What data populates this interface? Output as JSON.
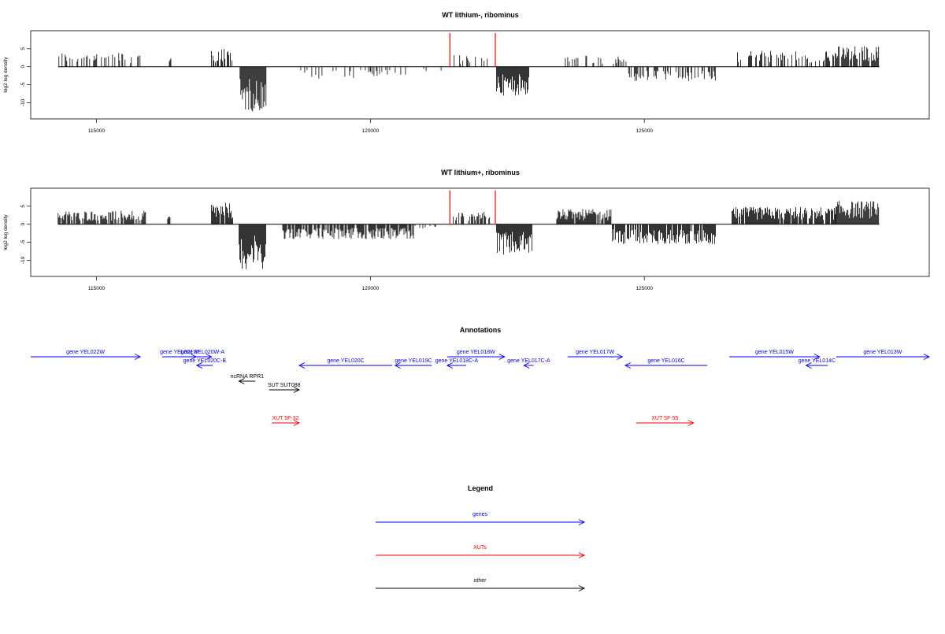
{
  "chart_data": [
    {
      "type": "bar",
      "title": "WT lithium-, ribominus",
      "ylabel": "log2 log density",
      "xlim": [
        113800,
        130200
      ],
      "ylim": [
        -14.5,
        10
      ],
      "x_ticks": [
        115000,
        120000,
        125000
      ],
      "y_ticks": [
        5,
        0,
        -5,
        -10
      ],
      "marker_lines": [
        121450,
        122280
      ],
      "bar_range": [
        114300,
        129290
      ],
      "signal_segments": [
        {
          "from": 114300,
          "to": 115830,
          "sign": 1,
          "amp": 4.0,
          "density": 0.35
        },
        {
          "from": 116330,
          "to": 116360,
          "sign": 1,
          "amp": 3.0,
          "density": 1.0
        },
        {
          "from": 117100,
          "to": 117480,
          "sign": 1,
          "amp": 5.0,
          "density": 0.55
        },
        {
          "from": 117620,
          "to": 118100,
          "sign": -1,
          "amp": 12.5,
          "density": 1.0
        },
        {
          "from": 118700,
          "to": 120700,
          "sign": -1,
          "amp": 3.3,
          "density": 0.22
        },
        {
          "from": 120700,
          "to": 121300,
          "sign": -1,
          "amp": 1.5,
          "density": 0.12
        },
        {
          "from": 121500,
          "to": 122200,
          "sign": 1,
          "amp": 3.3,
          "density": 0.22
        },
        {
          "from": 122300,
          "to": 122900,
          "sign": -1,
          "amp": 8.0,
          "density": 1.0
        },
        {
          "from": 123500,
          "to": 124700,
          "sign": 1,
          "amp": 3.2,
          "density": 0.28
        },
        {
          "from": 124700,
          "to": 126300,
          "sign": -1,
          "amp": 4.2,
          "density": 0.35
        },
        {
          "from": 126700,
          "to": 128500,
          "sign": 1,
          "amp": 4.5,
          "density": 0.45
        },
        {
          "from": 128500,
          "to": 129290,
          "sign": 1,
          "amp": 5.8,
          "density": 0.85
        }
      ]
    },
    {
      "type": "bar",
      "title": "WT lithium+, ribominus",
      "ylabel": "log2 log density",
      "xlim": [
        113800,
        130200
      ],
      "ylim": [
        -14.5,
        10
      ],
      "x_ticks": [
        115000,
        120000,
        125000
      ],
      "y_ticks": [
        5,
        0,
        -5,
        -10
      ],
      "marker_lines": [
        121450,
        122280
      ],
      "bar_range": [
        114300,
        129290
      ],
      "signal_segments": [
        {
          "from": 114300,
          "to": 115900,
          "sign": 1,
          "amp": 3.8,
          "density": 0.8
        },
        {
          "from": 116300,
          "to": 116350,
          "sign": 1,
          "amp": 2.5,
          "density": 1.0
        },
        {
          "from": 117100,
          "to": 117500,
          "sign": 1,
          "amp": 6.0,
          "density": 0.9
        },
        {
          "from": 117600,
          "to": 118100,
          "sign": -1,
          "amp": 12.5,
          "density": 1.0
        },
        {
          "from": 118400,
          "to": 120800,
          "sign": -1,
          "amp": 4.2,
          "density": 0.8
        },
        {
          "from": 120800,
          "to": 121300,
          "sign": -1,
          "amp": 1.5,
          "density": 0.3
        },
        {
          "from": 121500,
          "to": 122200,
          "sign": 1,
          "amp": 3.5,
          "density": 0.5
        },
        {
          "from": 122300,
          "to": 122950,
          "sign": -1,
          "amp": 8.5,
          "density": 1.0
        },
        {
          "from": 123400,
          "to": 124400,
          "sign": 1,
          "amp": 4.2,
          "density": 0.9
        },
        {
          "from": 124400,
          "to": 126300,
          "sign": -1,
          "amp": 5.5,
          "density": 0.85
        },
        {
          "from": 126600,
          "to": 128500,
          "sign": 1,
          "amp": 4.8,
          "density": 0.9
        },
        {
          "from": 128500,
          "to": 129290,
          "sign": 1,
          "amp": 6.5,
          "density": 1.0
        }
      ]
    }
  ],
  "annotations": {
    "title": "Annotations",
    "colors": {
      "genes": "#0000ff",
      "xuts": "#ff0000",
      "other": "#000000"
    },
    "features": [
      {
        "label": "gene YEL022W",
        "kind": "genes",
        "start": 113800,
        "end": 115800,
        "strand": "+",
        "row": 0
      },
      {
        "label": "gene YEL021W",
        "kind": "genes",
        "start": 116200,
        "end": 116820,
        "strand": "+",
        "row": 0
      },
      {
        "label": "gene YEL020W-A",
        "kind": "genes",
        "start": 116770,
        "end": 117100,
        "strand": "+",
        "row": 0
      },
      {
        "label": "gene YEL020C-B",
        "kind": "genes",
        "start": 116830,
        "end": 117120,
        "strand": "-",
        "row": 1
      },
      {
        "label": "gene YEL020C",
        "kind": "genes",
        "start": 118700,
        "end": 120400,
        "strand": "-",
        "row": 1
      },
      {
        "label": "gene YEL019C",
        "kind": "genes",
        "start": 120450,
        "end": 121120,
        "strand": "-",
        "row": 1
      },
      {
        "label": "gene YEL018C-A",
        "kind": "genes",
        "start": 121400,
        "end": 121750,
        "strand": "-",
        "row": 1
      },
      {
        "label": "gene YEL018W",
        "kind": "genes",
        "start": 121400,
        "end": 122450,
        "strand": "+",
        "row": 0
      },
      {
        "label": "gene YEL017C-A",
        "kind": "genes",
        "start": 122800,
        "end": 122980,
        "strand": "-",
        "row": 1
      },
      {
        "label": "gene YEL017W",
        "kind": "genes",
        "start": 123600,
        "end": 124600,
        "strand": "+",
        "row": 0
      },
      {
        "label": "gene YEL016C",
        "kind": "genes",
        "start": 124650,
        "end": 126150,
        "strand": "-",
        "row": 1
      },
      {
        "label": "gene YEL015W",
        "kind": "genes",
        "start": 126550,
        "end": 128200,
        "strand": "+",
        "row": 0
      },
      {
        "label": "gene YEL014C",
        "kind": "genes",
        "start": 127950,
        "end": 128350,
        "strand": "-",
        "row": 1
      },
      {
        "label": "gene YEL013W",
        "kind": "genes",
        "start": 128500,
        "end": 130200,
        "strand": "+",
        "row": 0
      },
      {
        "label": "ncRNA RPR1",
        "kind": "other",
        "start": 117600,
        "end": 117900,
        "strand": "-",
        "row": 2
      },
      {
        "label": "SUT SUT088",
        "kind": "other",
        "start": 118150,
        "end": 118700,
        "strand": "+",
        "row": 3
      },
      {
        "label": "XUT 5F-32",
        "kind": "xuts",
        "start": 118200,
        "end": 118700,
        "strand": "+",
        "row": 4
      },
      {
        "label": "XUT 5F-55",
        "kind": "xuts",
        "start": 124850,
        "end": 125900,
        "strand": "+",
        "row": 4
      }
    ]
  },
  "legend": {
    "title": "Legend",
    "items": [
      {
        "label": "genes",
        "kind": "genes"
      },
      {
        "label": "XUTs",
        "kind": "xuts"
      },
      {
        "label": "other",
        "kind": "other"
      }
    ]
  }
}
